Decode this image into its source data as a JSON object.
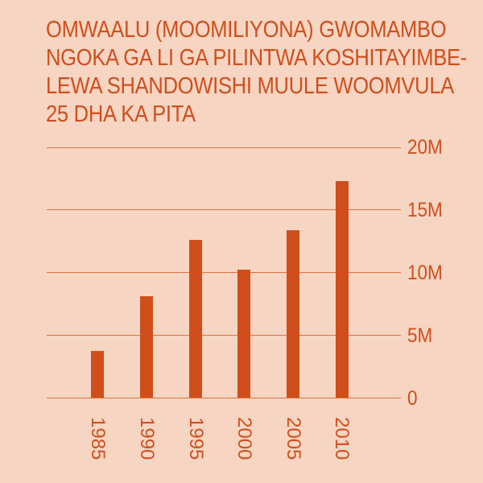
{
  "title": {
    "lines": [
      "OMWAALU (MOOMILIYONA) GWOMAMBO",
      "NGOKA GA LI GA PILINTWA KOSHITAYIMBE-",
      "LEWA SHANDOWISHI MUULE WOOMVULA",
      "25 DHA KA PITA"
    ]
  },
  "y_axis": {
    "ticks": [
      "0",
      "5M",
      "10M",
      "15M",
      "20M"
    ]
  },
  "x_axis": {
    "ticks": [
      "1985",
      "1990",
      "1995",
      "2000",
      "2005",
      "2010"
    ]
  },
  "colors": {
    "background": "#F6D5C2",
    "accent": "#D04E1C",
    "gridline": "#E0713F"
  },
  "chart_data": {
    "type": "bar",
    "title": "OMWAALU (MOOMILIYONA) GWOMAMBO NGOKA GA LI GA PILINTWA KOSHITAYIMBE-LEWA SHANDOWISHI MUULE WOOMVULA 25 DHA KA PITA",
    "categories": [
      "1985",
      "1990",
      "1995",
      "2000",
      "2005",
      "2010"
    ],
    "values": [
      3700000,
      8100000,
      12600000,
      10200000,
      13400000,
      17300000
    ],
    "xlabel": "",
    "ylabel": "",
    "ylim": [
      0,
      20000000
    ],
    "yticks": [
      0,
      5000000,
      10000000,
      15000000,
      20000000
    ],
    "ytick_labels": [
      "0",
      "5M",
      "10M",
      "15M",
      "20M"
    ],
    "grid": true,
    "y_axis_position": "right",
    "x_tick_rotation": 90,
    "legend": null
  }
}
